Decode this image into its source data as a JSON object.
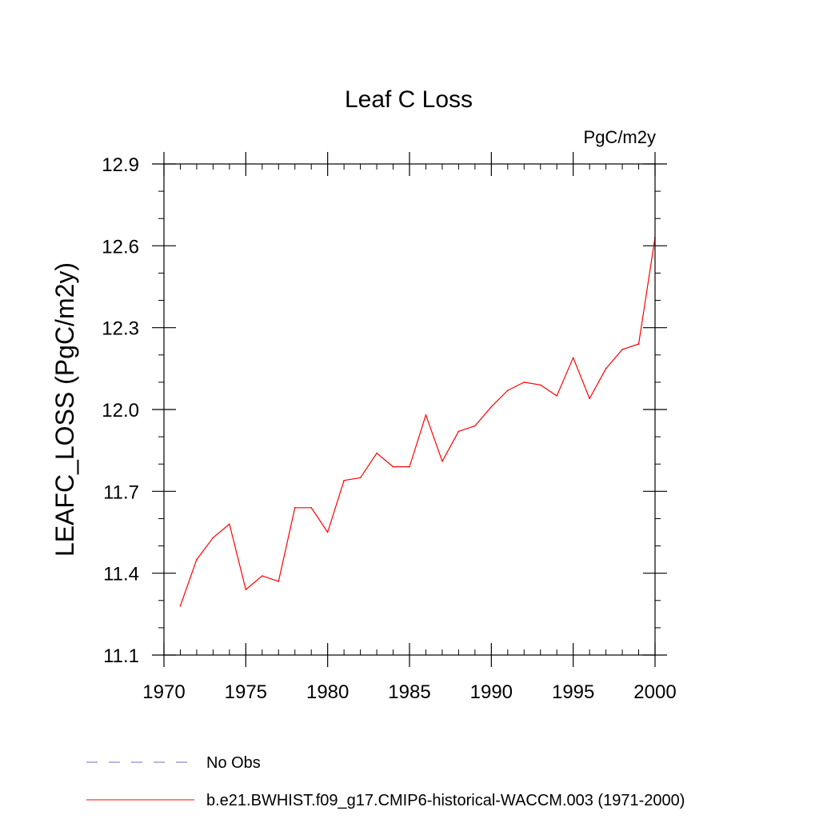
{
  "chart_data": {
    "type": "line",
    "title": "Leaf C Loss",
    "units_label": "PgC/m2y",
    "ylabel": "LEAFC_LOSS  (PgC/m2y)",
    "xlabel": "",
    "xlim": [
      1970,
      2000
    ],
    "ylim": [
      11.1,
      12.9
    ],
    "x_ticks": [
      1970,
      1975,
      1980,
      1985,
      1990,
      1995,
      2000
    ],
    "x_tick_labels": [
      "1970",
      "1975",
      "1980",
      "1985",
      "1990",
      "1995",
      "2000"
    ],
    "y_ticks": [
      11.1,
      11.4,
      11.7,
      12.0,
      12.3,
      12.6,
      12.9
    ],
    "y_tick_labels": [
      "11.1",
      "11.4",
      "11.7",
      "12.0",
      "12.3",
      "12.6",
      "12.9"
    ],
    "x_minor_step": 1,
    "y_minor_step": 0.1,
    "grid": false,
    "series": [
      {
        "name": "b.e21.BWHIST.f09_g17.CMIP6-historical-WACCM.003 (1971-2000)",
        "color": "#ff0000",
        "style": "solid",
        "x": [
          1971,
          1972,
          1973,
          1974,
          1975,
          1976,
          1977,
          1978,
          1979,
          1980,
          1981,
          1982,
          1983,
          1984,
          1985,
          1986,
          1987,
          1988,
          1989,
          1990,
          1991,
          1992,
          1993,
          1994,
          1995,
          1996,
          1997,
          1998,
          1999,
          2000
        ],
        "values": [
          11.28,
          11.45,
          11.53,
          11.58,
          11.34,
          11.39,
          11.37,
          11.64,
          11.64,
          11.55,
          11.74,
          11.75,
          11.84,
          11.79,
          11.79,
          11.98,
          11.81,
          11.92,
          11.94,
          12.01,
          12.07,
          12.1,
          12.09,
          12.05,
          12.19,
          12.04,
          12.15,
          12.22,
          12.24,
          12.63
        ]
      }
    ],
    "legend": [
      {
        "label": "No Obs",
        "color": "#7b68c8",
        "style": "dashed"
      },
      {
        "label": "b.e21.BWHIST.f09_g17.CMIP6-historical-WACCM.003 (1971-2000)",
        "color": "#ff0000",
        "style": "solid"
      }
    ],
    "legend_position": "bottom-left"
  }
}
